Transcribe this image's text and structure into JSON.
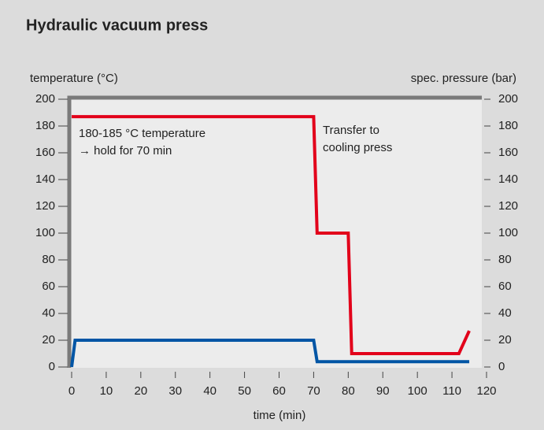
{
  "chart_data": {
    "type": "line",
    "title": "Hydraulic vacuum press",
    "ylabel": "temperature (°C)",
    "y2label": "spec. pressure (bar)",
    "xlabel": "time (min)",
    "annotations": [
      "180-185 °C temperature",
      "→ hold for 70 min",
      "Transfer to",
      "cooling press"
    ],
    "xlim": [
      0,
      120
    ],
    "xticks": [
      0,
      10,
      20,
      30,
      40,
      50,
      60,
      70,
      80,
      90,
      100,
      110,
      120
    ],
    "ylim": [
      0,
      200
    ],
    "yticks": [
      0,
      20,
      40,
      60,
      80,
      100,
      120,
      140,
      160,
      180,
      200
    ],
    "y2lim": [
      0,
      200
    ],
    "y2ticks": [
      0,
      20,
      40,
      60,
      80,
      100,
      120,
      140,
      160,
      180,
      200
    ],
    "series": [
      {
        "color": "#e2001a",
        "x": [
          0,
          70,
          71,
          80,
          81,
          112,
          115
        ],
        "values": [
          187,
          187,
          100,
          100,
          10,
          10,
          27
        ]
      },
      {
        "color": "#0055a5",
        "axis": "y2",
        "x": [
          0,
          1,
          70,
          71,
          115
        ],
        "values": [
          0,
          20,
          20,
          4,
          4
        ]
      }
    ]
  }
}
